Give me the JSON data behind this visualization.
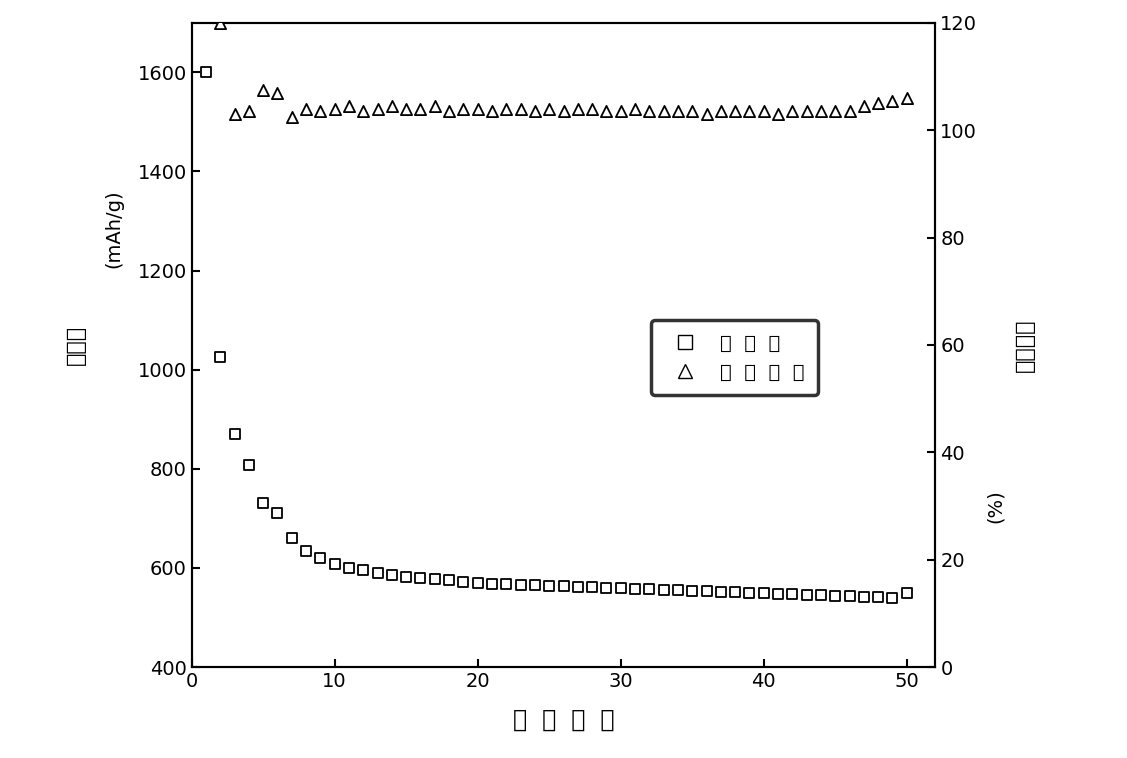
{
  "capacity_x": [
    1,
    2,
    3,
    4,
    5,
    6,
    7,
    8,
    9,
    10,
    11,
    12,
    13,
    14,
    15,
    16,
    17,
    18,
    19,
    20,
    21,
    22,
    23,
    24,
    25,
    26,
    27,
    28,
    29,
    30,
    31,
    32,
    33,
    34,
    35,
    36,
    37,
    38,
    39,
    40,
    41,
    42,
    43,
    44,
    45,
    46,
    47,
    48,
    49,
    50
  ],
  "capacity_y": [
    1600,
    1025,
    870,
    808,
    730,
    710,
    660,
    635,
    620,
    607,
    600,
    595,
    590,
    585,
    582,
    580,
    578,
    575,
    572,
    570,
    568,
    567,
    566,
    565,
    564,
    563,
    562,
    561,
    560,
    560,
    558,
    557,
    556,
    555,
    554,
    553,
    552,
    551,
    550,
    549,
    548,
    547,
    546,
    545,
    544,
    543,
    542,
    541,
    540,
    550
  ],
  "coulombic_x": [
    2,
    3,
    4,
    5,
    6,
    7,
    8,
    9,
    10,
    11,
    12,
    13,
    14,
    15,
    16,
    17,
    18,
    19,
    20,
    21,
    22,
    23,
    24,
    25,
    26,
    27,
    28,
    29,
    30,
    31,
    32,
    33,
    34,
    35,
    36,
    37,
    38,
    39,
    40,
    41,
    42,
    43,
    44,
    45,
    46,
    47,
    48,
    49,
    50
  ],
  "coulombic_y": [
    120,
    103,
    103.5,
    107.5,
    107,
    102.5,
    104,
    103.5,
    104,
    104.5,
    103.5,
    104,
    104.5,
    104,
    104,
    104.5,
    103.5,
    104,
    104,
    103.5,
    104,
    104,
    103.5,
    104,
    103.5,
    104,
    104,
    103.5,
    103.5,
    104,
    103.5,
    103.5,
    103.5,
    103.5,
    103,
    103.5,
    103.5,
    103.5,
    103.5,
    103,
    103.5,
    103.5,
    103.5,
    103.5,
    103.5,
    104.5,
    105,
    105.5,
    106
  ],
  "ylabel_left_unit": "(mAh/g)",
  "ylabel_left_chinese": "比容量",
  "ylabel_right_chinese": "库伦效率",
  "ylabel_right_unit": "(%)",
  "xlabel": "循  环  序  号",
  "legend_capacity": "比  容  量",
  "legend_coulombic": "库  伦  效  率",
  "xlim": [
    0,
    52
  ],
  "ylim_left": [
    400,
    1700
  ],
  "ylim_right": [
    0,
    120
  ],
  "xticks": [
    0,
    10,
    20,
    30,
    40,
    50
  ],
  "yticks_left": [
    400,
    600,
    800,
    1000,
    1200,
    1400,
    1600
  ],
  "yticks_right": [
    0,
    20,
    40,
    60,
    80,
    100,
    120
  ],
  "background_color": "#ffffff"
}
